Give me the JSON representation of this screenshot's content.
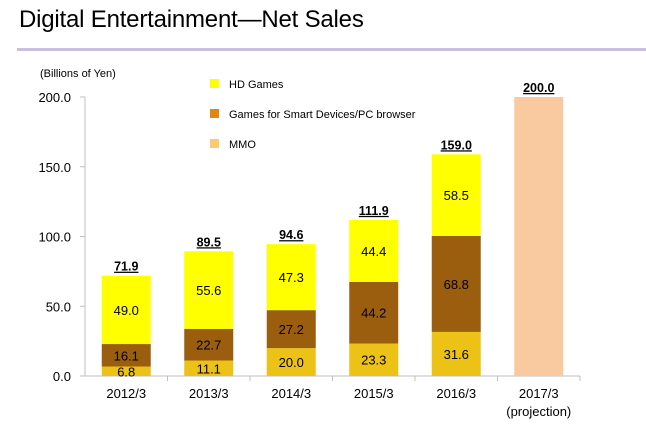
{
  "header": {
    "title": "Digital Entertainment―Net Sales"
  },
  "chart_data": {
    "type": "bar",
    "stacked": true,
    "title": "Digital Entertainment―Net Sales",
    "ylabel": "(Billions of Yen)",
    "xlabel": "",
    "ylim": [
      0,
      200
    ],
    "yticks": [
      0,
      50,
      100,
      150,
      200
    ],
    "ytick_labels": [
      "0.0",
      "50.0",
      "100.0",
      "150.0",
      "200.0"
    ],
    "grid": false,
    "legend_position": "top-center",
    "categories": [
      "2012/3",
      "2013/3",
      "2014/3",
      "2015/3",
      "2016/3",
      "2017/3"
    ],
    "category_sublabels": [
      "",
      "",
      "",
      "",
      "",
      "(projection)"
    ],
    "series": [
      {
        "name": "MMO",
        "color": "#EDC217",
        "legend_color": "#FFC86E",
        "values": [
          6.8,
          11.1,
          20.0,
          23.3,
          31.6,
          null
        ]
      },
      {
        "name": "Games for Smart Devices/PC browser",
        "color": "#9A5E0E",
        "legend_color": "#E0880E",
        "values": [
          16.1,
          22.7,
          27.2,
          44.2,
          68.8,
          null
        ]
      },
      {
        "name": "HD Games",
        "color": "#FFFF00",
        "legend_color": "#FFFF00",
        "values": [
          49.0,
          55.6,
          47.3,
          44.4,
          58.5,
          null
        ]
      }
    ],
    "projection": {
      "category": "2017/3",
      "value": 200.0,
      "color": "#F9C9A0"
    },
    "totals": [
      "71.9",
      "89.5",
      "94.6",
      "111.9",
      "159.0",
      "200.0"
    ],
    "legend_order": [
      "HD Games",
      "Games for Smart Devices/PC browser",
      "MMO"
    ]
  }
}
